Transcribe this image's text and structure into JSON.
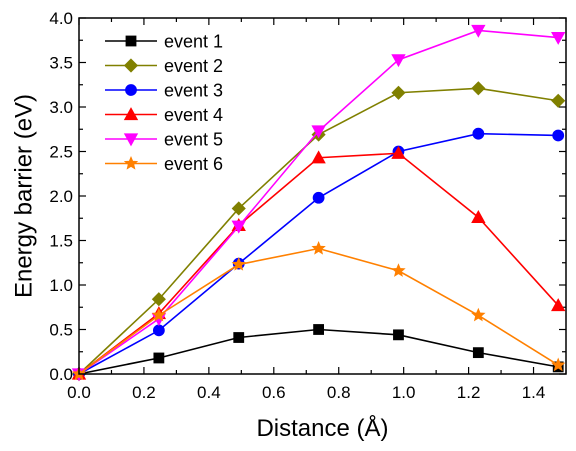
{
  "chart_data": {
    "type": "line",
    "title": "",
    "xlabel": "Distance (Å)",
    "ylabel": "Energy barrier (eV)",
    "xlim": [
      0.0,
      1.5
    ],
    "ylim": [
      0.0,
      4.0
    ],
    "x_ticks": [
      0.0,
      0.2,
      0.4,
      0.6,
      0.8,
      1.0,
      1.2,
      1.4
    ],
    "x_tick_labels": [
      "0.0",
      "0.2",
      "0.4",
      "0.6",
      "0.8",
      "1.0",
      "1.2",
      "1.4"
    ],
    "y_ticks": [
      0.0,
      0.5,
      1.0,
      1.5,
      2.0,
      2.5,
      3.0,
      3.5,
      4.0
    ],
    "y_tick_labels": [
      "0.0",
      "0.5",
      "1.0",
      "1.5",
      "2.0",
      "2.5",
      "3.0",
      "3.5",
      "4.0"
    ],
    "grid": false,
    "legend_position": "top-left",
    "x": [
      0.0,
      0.246,
      0.492,
      0.738,
      0.984,
      1.23,
      1.476
    ],
    "series": [
      {
        "name": "event 1",
        "color": "#000000",
        "marker": "square",
        "values": [
          0.0,
          0.18,
          0.41,
          0.5,
          0.44,
          0.24,
          0.08
        ]
      },
      {
        "name": "event 2",
        "color": "#808000",
        "marker": "diamond",
        "values": [
          0.0,
          0.84,
          1.86,
          2.69,
          3.16,
          3.21,
          3.07
        ]
      },
      {
        "name": "event 3",
        "color": "#0000ff",
        "marker": "circle",
        "values": [
          0.0,
          0.49,
          1.24,
          1.98,
          2.5,
          2.7,
          2.68
        ]
      },
      {
        "name": "event 4",
        "color": "#ff0000",
        "marker": "triangle-up",
        "values": [
          0.0,
          0.68,
          1.67,
          2.43,
          2.48,
          1.76,
          0.77
        ]
      },
      {
        "name": "event 5",
        "color": "#ff00ff",
        "marker": "triangle-down",
        "values": [
          0.0,
          0.62,
          1.66,
          2.73,
          3.53,
          3.86,
          3.78
        ]
      },
      {
        "name": "event 6",
        "color": "#ff8000",
        "marker": "star",
        "values": [
          0.0,
          0.66,
          1.23,
          1.41,
          1.16,
          0.66,
          0.1
        ]
      }
    ]
  }
}
